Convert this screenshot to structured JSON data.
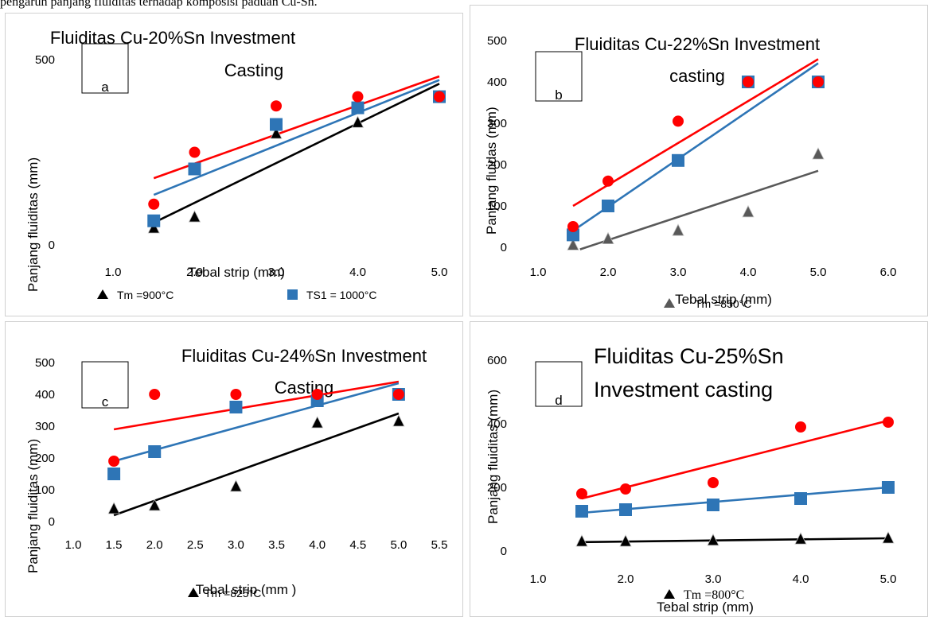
{
  "caption_fragment": "pengaruh panjang fluiditas terhadap komposisi paduan Cu-Sn.",
  "colors": {
    "red": "#ff0000",
    "blue": "#2e75b6",
    "black": "#000000",
    "gray": "#595959"
  },
  "chart_data": [
    {
      "type": "scatter",
      "title_lines": [
        "Fluiditas Cu-20%Sn Investment",
        "Casting"
      ],
      "panel_label": "a",
      "xlabel": "Tebal strip (mm)",
      "ylabel": "Panjang fluiditas (mm)",
      "xlim": [
        1.0,
        5.0
      ],
      "ylim": [
        0,
        500
      ],
      "xticks": [
        "1.0",
        "2.0",
        "3.0",
        "4.0",
        "5.0"
      ],
      "yticks": [
        "0",
        "500"
      ],
      "legend": [
        "Tm =900°C",
        "TS1 = 1000°C"
      ],
      "series": [
        {
          "color": "red",
          "marker": "circle",
          "x": [
            1.5,
            2.0,
            3.0,
            4.0,
            5.0
          ],
          "y": [
            110,
            250,
            375,
            400,
            400
          ],
          "trend": [
            [
              1.5,
              180
            ],
            [
              5.0,
              455
            ]
          ]
        },
        {
          "color": "blue",
          "marker": "square",
          "x": [
            1.5,
            2.0,
            3.0,
            4.0,
            5.0
          ],
          "y": [
            65,
            205,
            325,
            370,
            400
          ],
          "trend": [
            [
              1.5,
              135
            ],
            [
              5.0,
              445
            ]
          ]
        },
        {
          "color": "black",
          "marker": "triangle",
          "x": [
            1.5,
            2.0,
            3.0,
            4.0,
            5.0
          ],
          "y": [
            45,
            75,
            300,
            330,
            400
          ],
          "trend": [
            [
              1.5,
              60
            ],
            [
              5.0,
              435
            ]
          ]
        }
      ]
    },
    {
      "type": "scatter",
      "title_lines": [
        "Fluiditas Cu-22%Sn Investment",
        "casting"
      ],
      "panel_label": "b",
      "xlabel": "Tebal strip (mm)",
      "ylabel": "Panjang fluidas (mm)",
      "xlim": [
        1.0,
        6.0
      ],
      "ylim": [
        0,
        500
      ],
      "xticks": [
        "1.0",
        "2.0",
        "3.0",
        "4.0",
        "5.0",
        "6.0"
      ],
      "yticks": [
        "0",
        "100",
        "200",
        "300",
        "400",
        "500"
      ],
      "legend": [
        "Tm =850°C"
      ],
      "series": [
        {
          "color": "red",
          "marker": "circle",
          "x": [
            1.5,
            2.0,
            3.0,
            4.0,
            5.0
          ],
          "y": [
            50,
            160,
            305,
            400,
            400
          ],
          "trend": [
            [
              1.5,
              100
            ],
            [
              5.0,
              455
            ]
          ]
        },
        {
          "color": "blue",
          "marker": "square",
          "x": [
            1.5,
            2.0,
            3.0,
            4.0,
            5.0
          ],
          "y": [
            30,
            100,
            210,
            400,
            400
          ],
          "trend": [
            [
              1.5,
              40
            ],
            [
              5.0,
              445
            ]
          ]
        },
        {
          "color": "gray",
          "marker": "triangle",
          "x": [
            1.5,
            2.0,
            3.0,
            4.0,
            5.0
          ],
          "y": [
            5,
            20,
            40,
            85,
            225
          ],
          "trend": [
            [
              1.6,
              -5
            ],
            [
              5.0,
              185
            ]
          ]
        }
      ]
    },
    {
      "type": "scatter",
      "title_lines": [
        "Fluiditas Cu-24%Sn Investment",
        "Casting"
      ],
      "panel_label": "c",
      "xlabel": "Tebal strip (mm )",
      "ylabel": "Panjang fluiditas (mm)",
      "xlim": [
        1.0,
        5.5
      ],
      "ylim": [
        0,
        500
      ],
      "xticks": [
        "1.0",
        "1.5",
        "2.0",
        "2.5",
        "3.0",
        "3.5",
        "4.0",
        "4.5",
        "5.0",
        "5.5"
      ],
      "yticks": [
        "0",
        "100",
        "200",
        "300",
        "400",
        "500"
      ],
      "legend": [
        "Tm =825°C"
      ],
      "series": [
        {
          "color": "red",
          "marker": "circle",
          "x": [
            1.5,
            2.0,
            3.0,
            4.0,
            5.0
          ],
          "y": [
            190,
            400,
            400,
            400,
            400
          ],
          "trend": [
            [
              1.5,
              290
            ],
            [
              5.0,
              440
            ]
          ]
        },
        {
          "color": "blue",
          "marker": "square",
          "x": [
            1.5,
            2.0,
            3.0,
            4.0,
            5.0
          ],
          "y": [
            150,
            220,
            360,
            380,
            400
          ],
          "trend": [
            [
              1.5,
              190
            ],
            [
              5.0,
              435
            ]
          ]
        },
        {
          "color": "black",
          "marker": "triangle",
          "x": [
            1.5,
            2.0,
            3.0,
            4.0,
            5.0
          ],
          "y": [
            40,
            50,
            110,
            310,
            315
          ],
          "trend": [
            [
              1.5,
              20
            ],
            [
              5.0,
              340
            ]
          ]
        }
      ]
    },
    {
      "type": "scatter",
      "title_lines": [
        "Fluiditas Cu-25%Sn",
        "Investment casting"
      ],
      "panel_label": "d",
      "xlabel": "Tebal strip (mm)",
      "ylabel": "Panjang fluiditas (mm)",
      "xlim": [
        1.0,
        5.0
      ],
      "ylim": [
        0,
        600
      ],
      "xticks": [
        "1.0",
        "2.0",
        "3.0",
        "4.0",
        "5.0"
      ],
      "yticks": [
        "0",
        "200",
        "400",
        "600"
      ],
      "legend": [
        "Tm =800°C"
      ],
      "series": [
        {
          "color": "red",
          "marker": "circle",
          "x": [
            1.5,
            2.0,
            3.0,
            4.0,
            5.0
          ],
          "y": [
            180,
            195,
            215,
            390,
            405
          ],
          "trend": [
            [
              1.5,
              165
            ],
            [
              5.0,
              410
            ]
          ]
        },
        {
          "color": "blue",
          "marker": "square",
          "x": [
            1.5,
            2.0,
            3.0,
            4.0,
            5.0
          ],
          "y": [
            125,
            130,
            145,
            165,
            200
          ],
          "trend": [
            [
              1.5,
              120
            ],
            [
              5.0,
              200
            ]
          ]
        },
        {
          "color": "black",
          "marker": "triangle",
          "x": [
            1.5,
            2.0,
            3.0,
            4.0,
            5.0
          ],
          "y": [
            30,
            30,
            33,
            37,
            40
          ],
          "trend": [
            [
              1.5,
              28
            ],
            [
              5.0,
              40
            ]
          ]
        }
      ]
    }
  ]
}
